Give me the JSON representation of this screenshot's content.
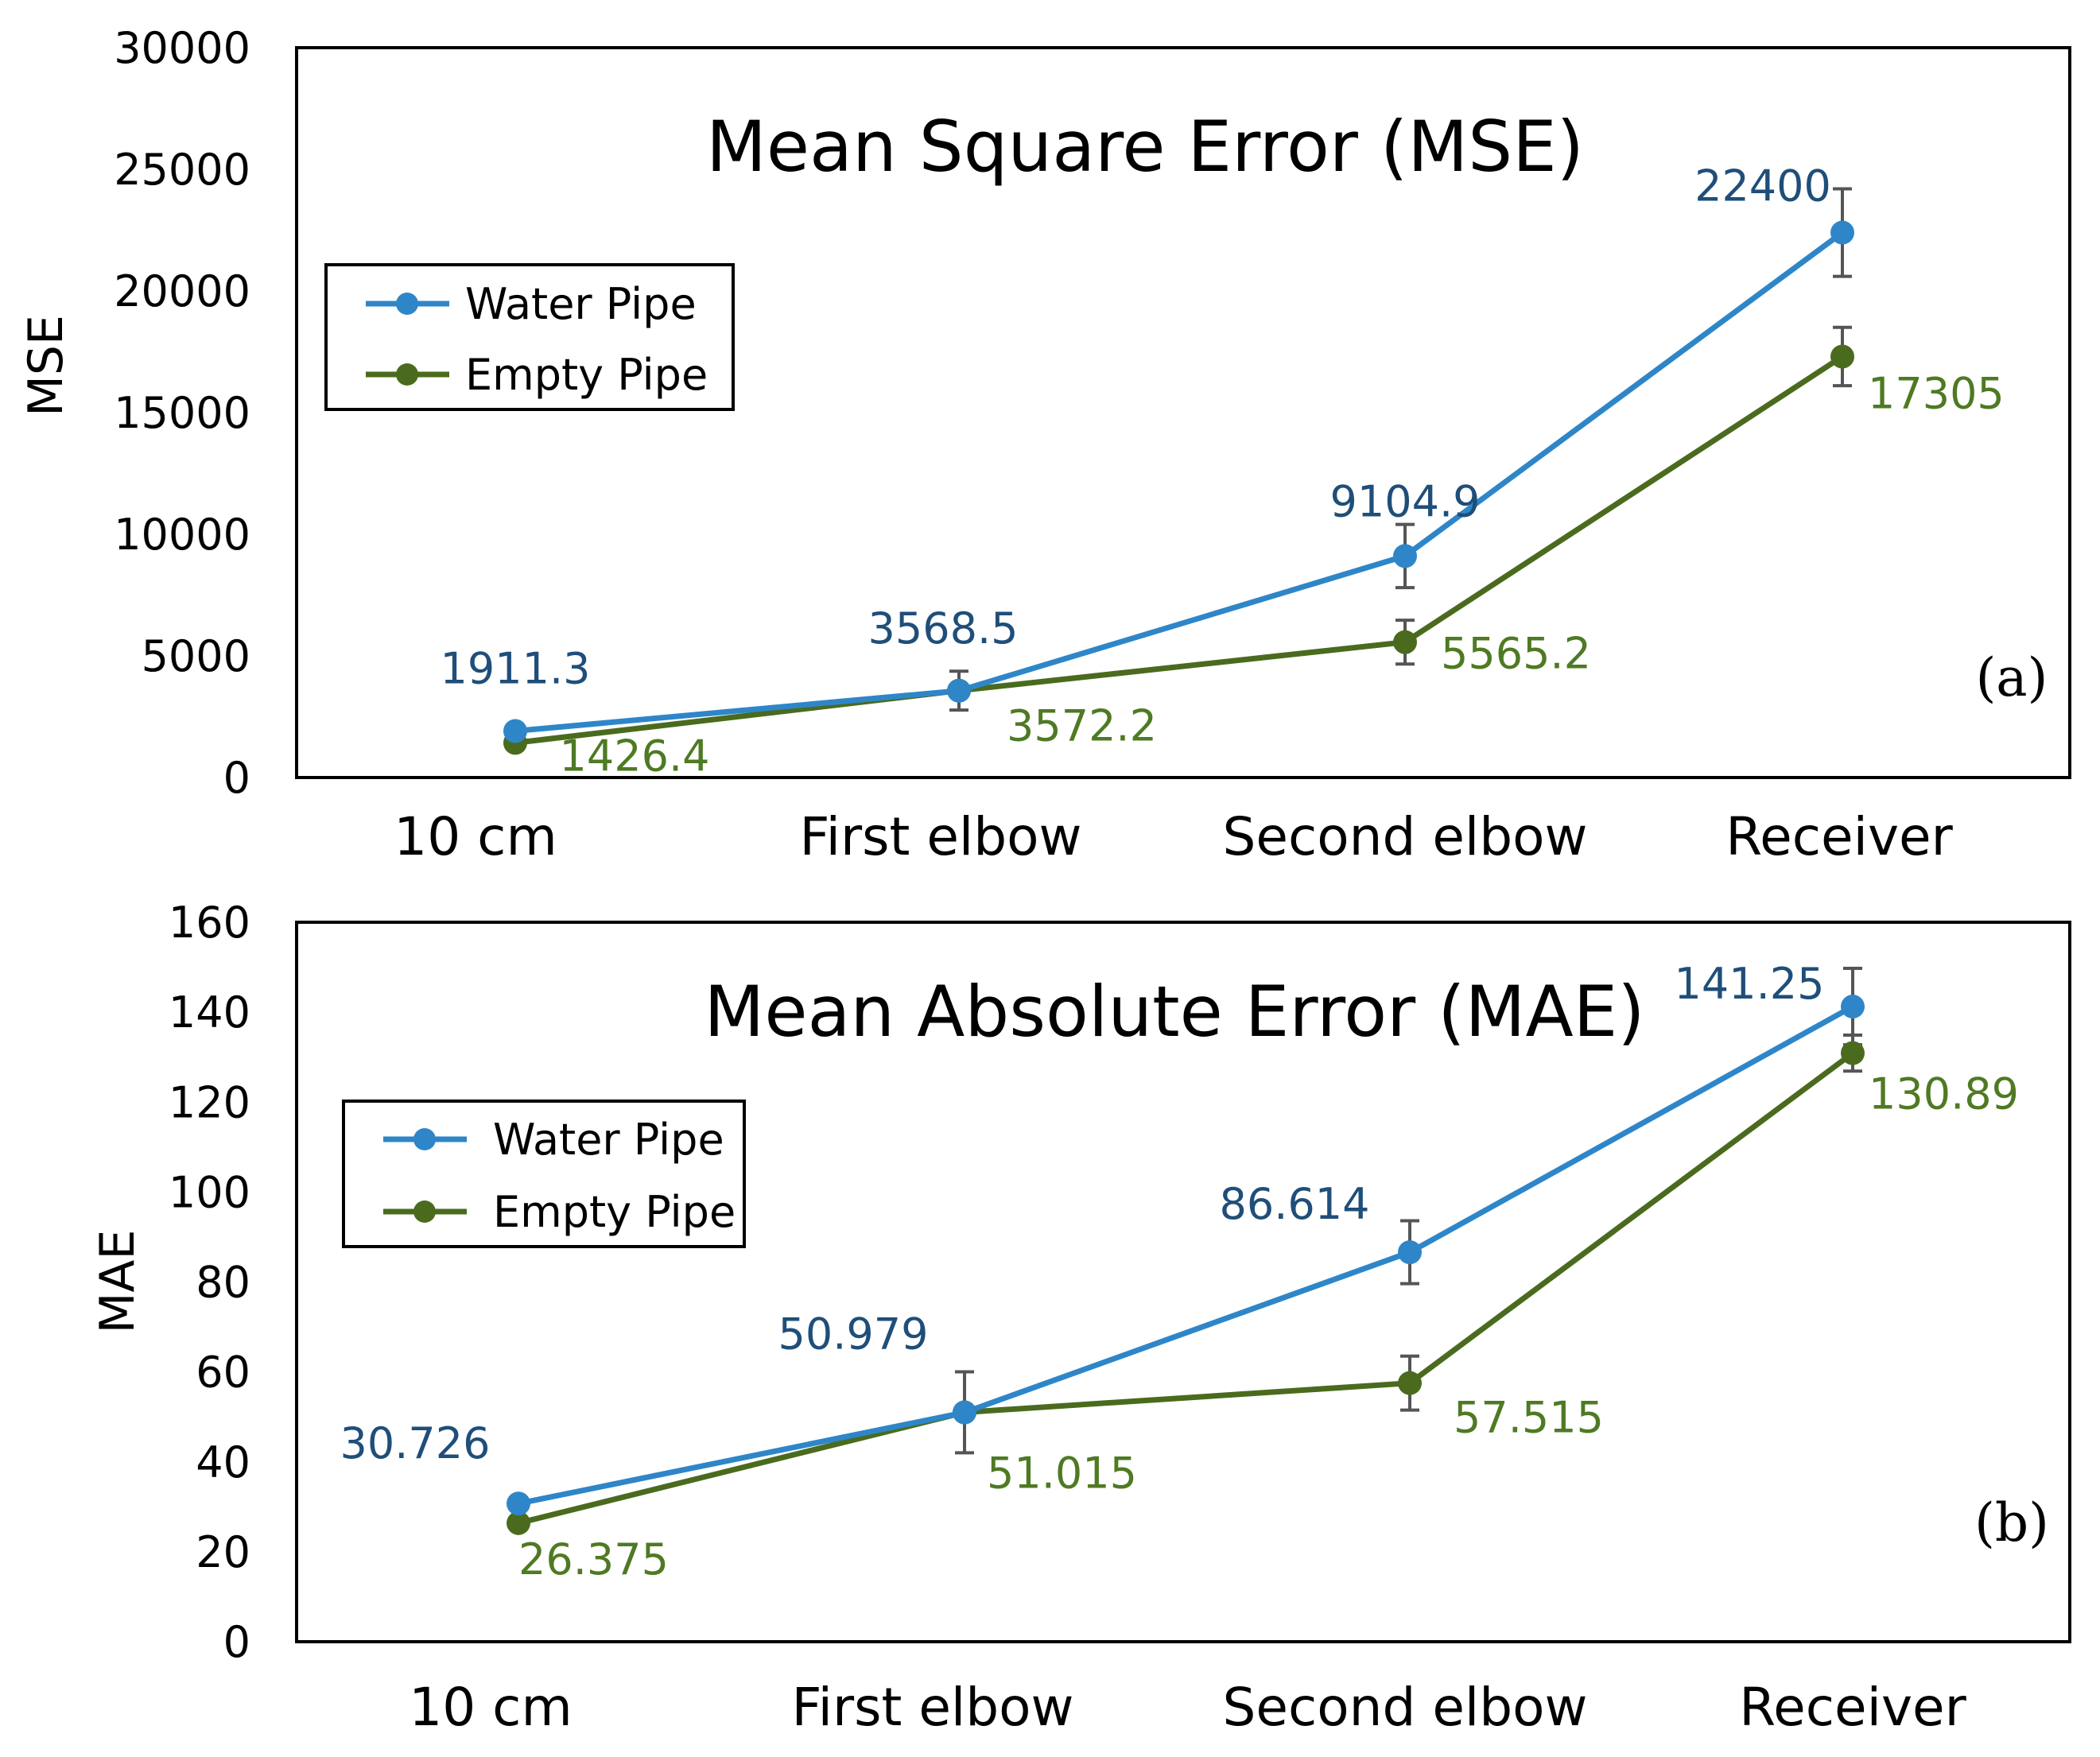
{
  "colors": {
    "water": "#2E86C8",
    "empty": "#4A6B1E",
    "water_label": "#1F4E79",
    "empty_label": "#4E7A23",
    "error_bar": "#555555"
  },
  "chart_data": [
    {
      "type": "line",
      "title": "Mean Square Error (MSE)",
      "panel_label": "(a)",
      "xlabel": "",
      "ylabel": "MSE",
      "ylim": [
        0,
        30000
      ],
      "yticks": [
        "0",
        "5000",
        "10000",
        "15000",
        "20000",
        "25000",
        "30000"
      ],
      "categories": [
        "10 cm",
        "First elbow",
        "Second elbow",
        "Receiver"
      ],
      "legend": [
        "Water Pipe",
        "Empty Pipe"
      ],
      "legend_position": "upper-left",
      "series": [
        {
          "name": "Water Pipe",
          "values": [
            1911.3,
            3568.5,
            9104.9,
            22400
          ],
          "errors": [
            0,
            0,
            1300,
            1800
          ],
          "labels": [
            "1911.3",
            "3568.5",
            "9104.9",
            "22400"
          ]
        },
        {
          "name": "Empty Pipe",
          "values": [
            1426.4,
            3572.2,
            5565.2,
            17305
          ],
          "errors": [
            0,
            800,
            900,
            1200
          ],
          "labels": [
            "1426.4",
            "3572.2",
            "5565.2",
            "17305"
          ]
        }
      ]
    },
    {
      "type": "line",
      "title": "Mean Absolute Error (MAE)",
      "panel_label": "(b)",
      "xlabel": "",
      "ylabel": "MAE",
      "ylim": [
        0,
        160
      ],
      "yticks": [
        "0",
        "20",
        "40",
        "60",
        "80",
        "100",
        "120",
        "140",
        "160"
      ],
      "categories": [
        "10 cm",
        "First elbow",
        "Second elbow",
        "Receiver"
      ],
      "legend": [
        "Water Pipe",
        "Empty Pipe"
      ],
      "legend_position": "upper-left",
      "series": [
        {
          "name": "Water Pipe",
          "values": [
            30.726,
            50.979,
            86.614,
            141.25
          ],
          "errors": [
            0,
            0,
            7,
            8.5
          ],
          "labels": [
            "30.726",
            "50.979",
            "86.614",
            "141.25"
          ]
        },
        {
          "name": "Empty Pipe",
          "values": [
            26.375,
            51.015,
            57.515,
            130.89
          ],
          "errors": [
            0,
            9,
            6,
            4
          ],
          "labels": [
            "26.375",
            "51.015",
            "57.515",
            "130.89"
          ]
        }
      ]
    }
  ]
}
